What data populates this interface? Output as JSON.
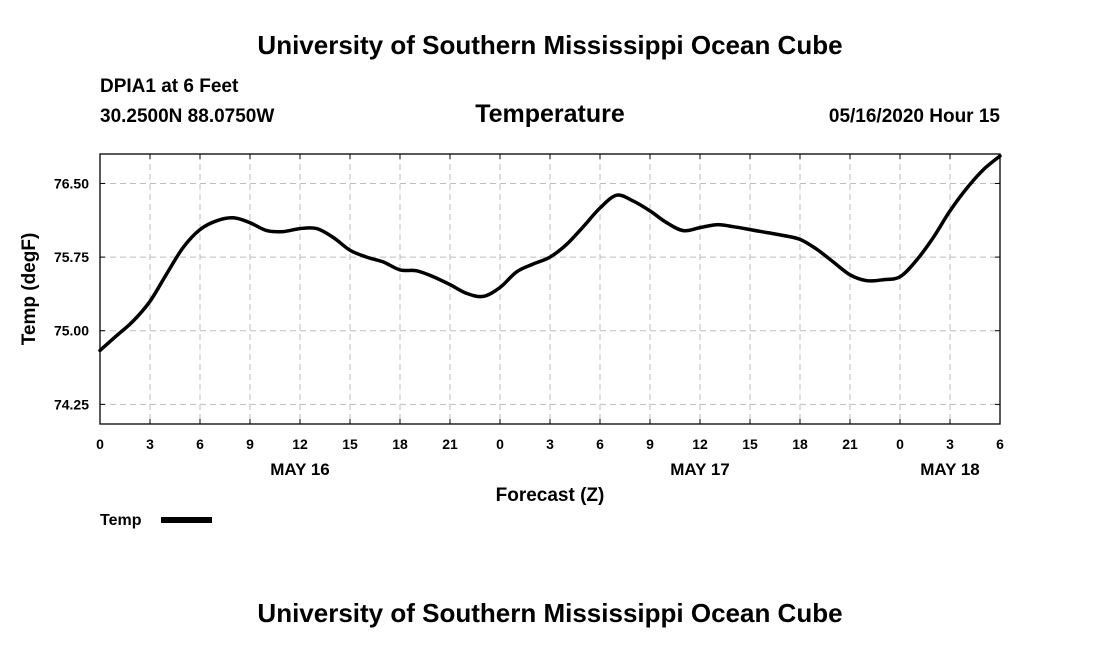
{
  "header": {
    "title": "University of Southern Mississippi Ocean Cube",
    "station": "DPIA1 at 6 Feet",
    "location": "30.2500N 88.0750W",
    "chart_title": "Temperature",
    "timestamp": "05/16/2020 Hour 15"
  },
  "footer": {
    "title": "University of Southern Mississippi Ocean Cube"
  },
  "chart_data": {
    "type": "line",
    "title": "Temperature",
    "xlabel": "Forecast (Z)",
    "ylabel": "Temp (degF)",
    "x_unit": "hours since 05/16 00Z",
    "xlim": [
      0,
      54
    ],
    "ylim": [
      74.05,
      76.8
    ],
    "grid": true,
    "x_tick_values": [
      0,
      3,
      6,
      9,
      12,
      15,
      18,
      21,
      24,
      27,
      30,
      33,
      36,
      39,
      42,
      45,
      48,
      51,
      54
    ],
    "x_tick_labels": [
      "0",
      "3",
      "6",
      "9",
      "12",
      "15",
      "18",
      "21",
      "0",
      "3",
      "6",
      "9",
      "12",
      "15",
      "18",
      "21",
      "0",
      "3",
      "6"
    ],
    "y_ticks": [
      74.25,
      75.0,
      75.75,
      76.5
    ],
    "y_tick_labels": [
      "74.25",
      "75.00",
      "75.75",
      "76.50"
    ],
    "date_labels": [
      {
        "x": 12,
        "label": "MAY 16"
      },
      {
        "x": 36,
        "label": "MAY 17"
      },
      {
        "x": 51,
        "label": "MAY 18"
      }
    ],
    "legend": {
      "position": "bottom-left",
      "label": "Temp"
    },
    "series": [
      {
        "name": "Temp",
        "color": "#000000",
        "x": [
          0,
          1,
          2,
          3,
          4,
          5,
          6,
          7,
          8,
          9,
          10,
          11,
          12,
          13,
          14,
          15,
          16,
          17,
          18,
          19,
          20,
          21,
          22,
          23,
          24,
          25,
          26,
          27,
          28,
          29,
          30,
          31,
          32,
          33,
          34,
          35,
          36,
          37,
          38,
          39,
          40,
          41,
          42,
          43,
          44,
          45,
          46,
          47,
          48,
          49,
          50,
          51,
          52,
          53,
          54
        ],
        "values": [
          74.8,
          74.95,
          75.1,
          75.3,
          75.58,
          75.85,
          76.03,
          76.12,
          76.15,
          76.1,
          76.02,
          76.01,
          76.04,
          76.04,
          75.95,
          75.82,
          75.75,
          75.7,
          75.62,
          75.61,
          75.55,
          75.47,
          75.38,
          75.35,
          75.44,
          75.6,
          75.68,
          75.75,
          75.88,
          76.06,
          76.25,
          76.38,
          76.32,
          76.22,
          76.1,
          76.02,
          76.05,
          76.08,
          76.06,
          76.03,
          76.0,
          75.97,
          75.93,
          75.83,
          75.7,
          75.57,
          75.51,
          75.52,
          75.55,
          75.72,
          75.95,
          76.22,
          76.45,
          76.64,
          76.78
        ]
      }
    ]
  }
}
